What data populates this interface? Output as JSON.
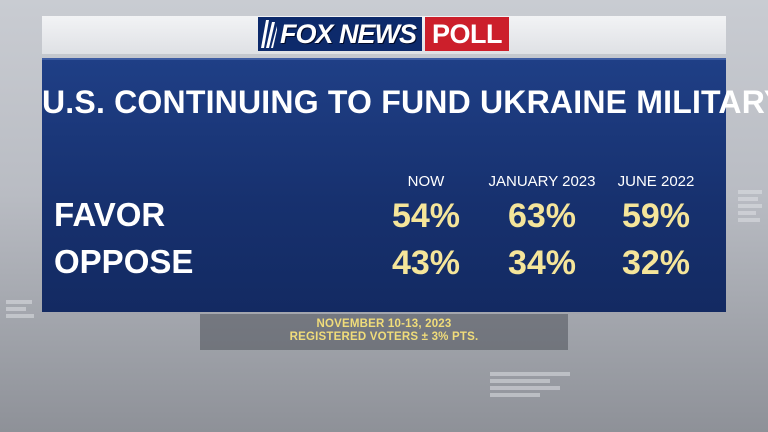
{
  "logo": {
    "brand": "FOX NEWS",
    "product": "POLL"
  },
  "headline": "U.S. CONTINUING TO FUND UKRAINE MILITARY",
  "columns": [
    "NOW",
    "JANUARY 2023",
    "JUNE 2022"
  ],
  "rows": [
    {
      "label": "FAVOR",
      "values": [
        "54%",
        "63%",
        "59%"
      ]
    },
    {
      "label": "OPPOSE",
      "values": [
        "43%",
        "34%",
        "32%"
      ]
    }
  ],
  "footer": {
    "dates": "NOVEMBER 10-13, 2023",
    "sample": "REGISTERED VOTERS ± 3% PTS."
  },
  "colors": {
    "panel": "#1f3f86",
    "values": "#f5e59a",
    "footer_text": "#f0dc7a",
    "logo_blue": "#0d2a6b",
    "logo_red": "#cc1f2b"
  }
}
